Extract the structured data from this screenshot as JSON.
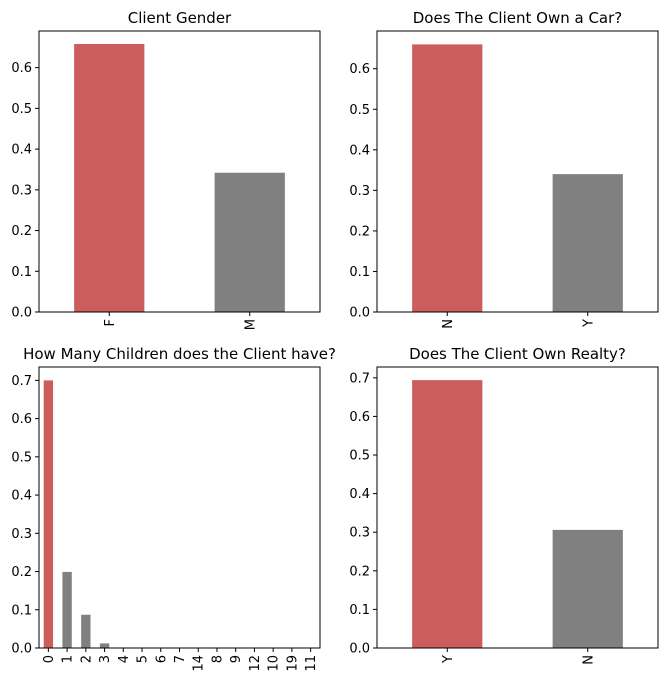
{
  "colors": {
    "accent": "#cd5c5c",
    "neutral": "#808080"
  },
  "chart_data": [
    {
      "type": "bar",
      "title": "Client Gender",
      "categories": [
        "F",
        "M"
      ],
      "values": [
        0.658,
        0.342
      ],
      "ylim": [
        0,
        0.69
      ],
      "yticks": [
        "0.0",
        "0.1",
        "0.2",
        "0.3",
        "0.4",
        "0.5",
        "0.6"
      ],
      "colors": [
        "#cd5c5c",
        "#808080"
      ],
      "grid": false
    },
    {
      "type": "bar",
      "title": "Does The Client Own a Car?",
      "categories": [
        "N",
        "Y"
      ],
      "values": [
        0.66,
        0.34
      ],
      "ylim": [
        0,
        0.693
      ],
      "yticks": [
        "0.0",
        "0.1",
        "0.2",
        "0.3",
        "0.4",
        "0.5",
        "0.6"
      ],
      "colors": [
        "#cd5c5c",
        "#808080"
      ],
      "grid": false
    },
    {
      "type": "bar",
      "title": "How Many Children does the Client have?",
      "categories": [
        "0",
        "1",
        "2",
        "3",
        "4",
        "5",
        "6",
        "7",
        "14",
        "8",
        "9",
        "12",
        "10",
        "19",
        "11"
      ],
      "values": [
        0.7,
        0.199,
        0.087,
        0.012,
        0.0014,
        0.0003,
        0.0001,
        2e-05,
        1e-05,
        1e-05,
        1e-05,
        1e-05,
        1e-05,
        1e-05,
        1e-05
      ],
      "ylim": [
        0,
        0.735
      ],
      "yticks": [
        "0.0",
        "0.1",
        "0.2",
        "0.3",
        "0.4",
        "0.5",
        "0.6",
        "0.7"
      ],
      "colors": [
        "#cd5c5c",
        "#808080",
        "#808080",
        "#808080",
        "#808080",
        "#808080",
        "#808080",
        "#808080",
        "#808080",
        "#808080",
        "#808080",
        "#808080",
        "#808080",
        "#808080",
        "#808080"
      ],
      "grid": false
    },
    {
      "type": "bar",
      "title": "Does The Client Own Realty?",
      "categories": [
        "Y",
        "N"
      ],
      "values": [
        0.694,
        0.306
      ],
      "ylim": [
        0,
        0.728
      ],
      "yticks": [
        "0.0",
        "0.1",
        "0.2",
        "0.3",
        "0.4",
        "0.5",
        "0.6",
        "0.7"
      ],
      "colors": [
        "#cd5c5c",
        "#808080"
      ],
      "grid": false
    }
  ]
}
